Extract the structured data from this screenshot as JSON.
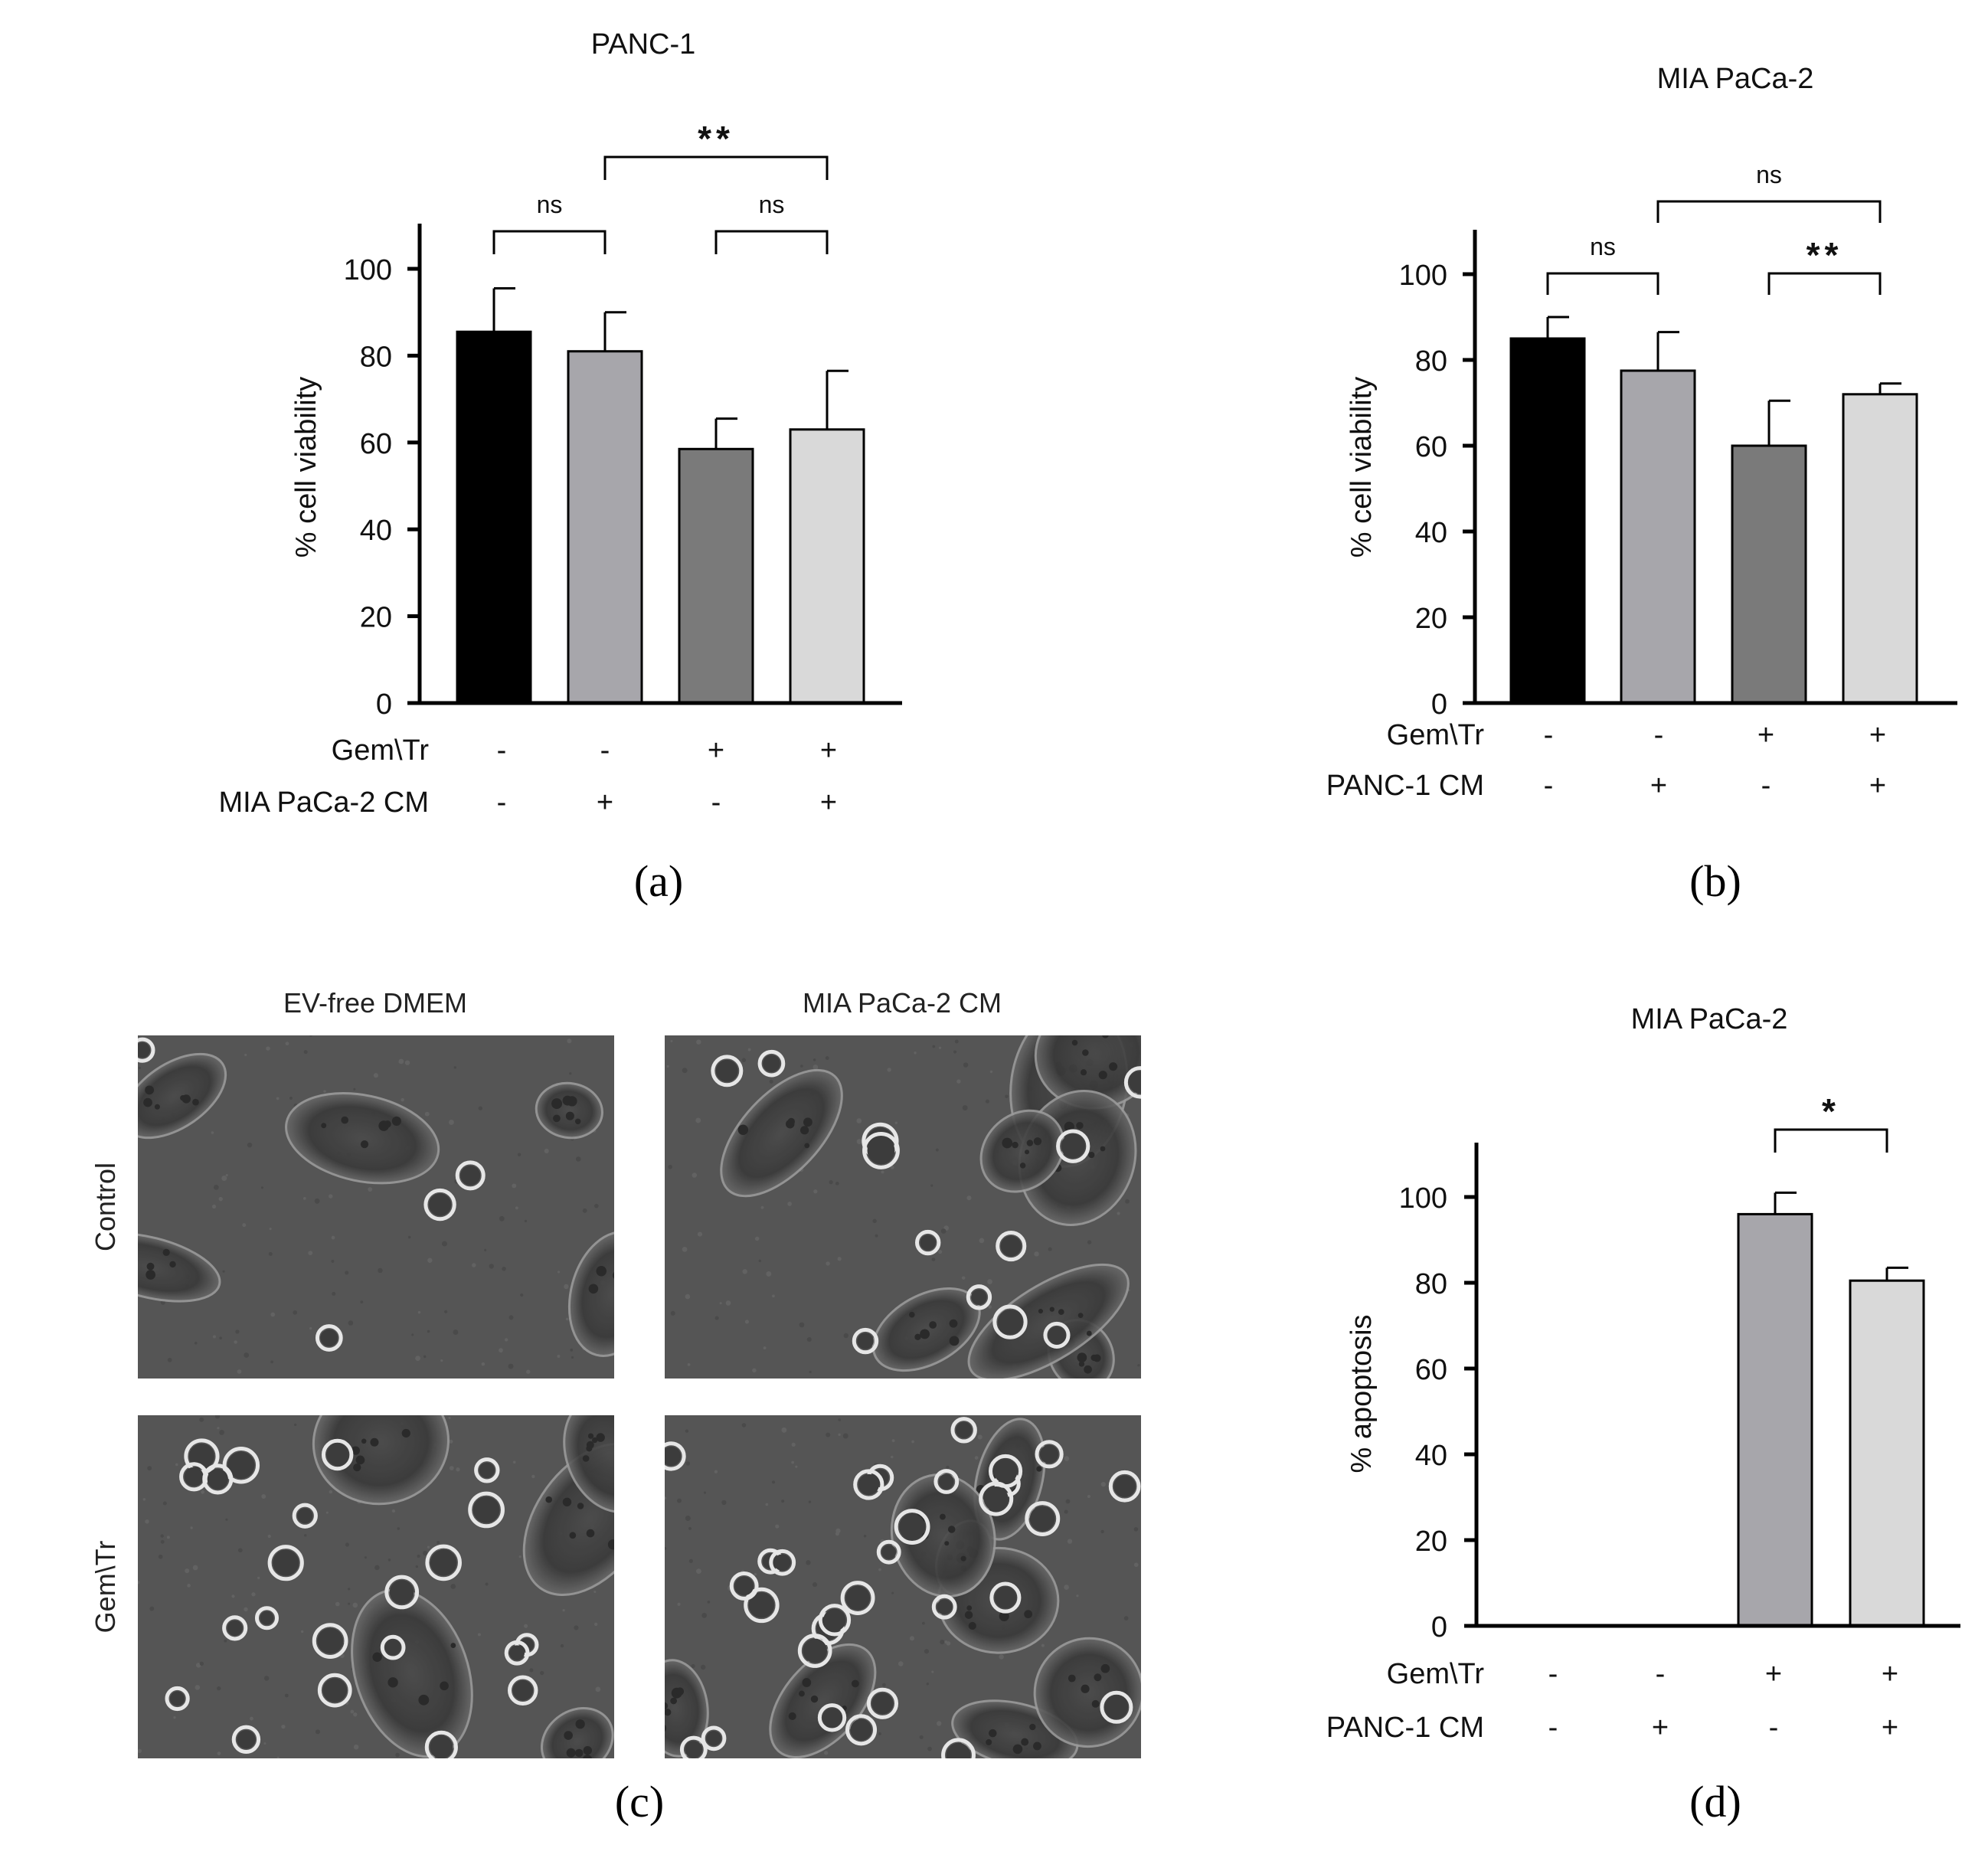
{
  "panels": [
    {
      "id": "a",
      "letter": "(a)",
      "chart_data": {
        "type": "bar",
        "title": "PANC-1",
        "ylabel": "% cell viability",
        "ylim": [
          0,
          110
        ],
        "yticks": [
          0,
          20,
          40,
          60,
          80,
          100
        ],
        "values": [
          85.5,
          81,
          58.5,
          63
        ],
        "errors": [
          10,
          9,
          7,
          13.5
        ],
        "bar_colors": [
          "#000000",
          "#a7a6ab",
          "#7a7a7a",
          "#d9d9d9"
        ],
        "condition_rows": [
          {
            "label": "Gem\\Tr",
            "signs": [
              "-",
              "-",
              "+",
              "+"
            ]
          },
          {
            "label": "MIA PaCa-2 CM",
            "signs": [
              "-",
              "+",
              "-",
              "+"
            ]
          }
        ],
        "comparisons": [
          {
            "from": 0,
            "to": 1,
            "label": "ns",
            "level": 1
          },
          {
            "from": 2,
            "to": 3,
            "label": "ns",
            "level": 1
          },
          {
            "from": 1,
            "to": 3,
            "label": "**",
            "level": 2
          }
        ]
      }
    },
    {
      "id": "b",
      "letter": "(b)",
      "chart_data": {
        "type": "bar",
        "title": "MIA PaCa-2",
        "ylabel": "% cell viability",
        "ylim": [
          0,
          110
        ],
        "yticks": [
          0,
          20,
          40,
          60,
          80,
          100
        ],
        "values": [
          85,
          77.5,
          60,
          72
        ],
        "errors": [
          5,
          9,
          10.5,
          2.5
        ],
        "bar_colors": [
          "#000000",
          "#a7a6ab",
          "#7a7a7a",
          "#d9d9d9"
        ],
        "condition_rows": [
          {
            "label": "Gem\\Tr",
            "signs": [
              "-",
              "-",
              "+",
              "+"
            ]
          },
          {
            "label": "PANC-1 CM",
            "signs": [
              "-",
              "+",
              "-",
              "+"
            ]
          }
        ],
        "comparisons": [
          {
            "from": 0,
            "to": 1,
            "label": "ns",
            "level": 1
          },
          {
            "from": 2,
            "to": 3,
            "label": "**",
            "level": 1
          },
          {
            "from": 1,
            "to": 3,
            "label": "ns",
            "level": 2
          }
        ]
      }
    },
    {
      "id": "c",
      "letter": "(c)",
      "column_headers": [
        "EV-free DMEM",
        "MIA PaCa-2 CM"
      ],
      "row_labels": [
        "Control",
        "Gem\\Tr"
      ]
    },
    {
      "id": "d",
      "letter": "(d)",
      "chart_data": {
        "type": "bar",
        "title": "MIA PaCa-2",
        "ylabel": "% apoptosis",
        "ylim": [
          0,
          110
        ],
        "yticks": [
          0,
          20,
          40,
          60,
          80,
          100
        ],
        "values": [
          0,
          0,
          96,
          80.5
        ],
        "errors": [
          0,
          0,
          5,
          3
        ],
        "bar_colors": [
          "#000000",
          "#a7a6ab",
          "#a7a6ab",
          "#d9d9d9"
        ],
        "condition_rows": [
          {
            "label": "Gem\\Tr",
            "signs": [
              "-",
              "-",
              "+",
              "+"
            ]
          },
          {
            "label": "PANC-1 CM",
            "signs": [
              "-",
              "+",
              "-",
              "+"
            ]
          }
        ],
        "comparisons": [
          {
            "from": 2,
            "to": 3,
            "label": "*",
            "level": 1
          }
        ]
      }
    }
  ]
}
